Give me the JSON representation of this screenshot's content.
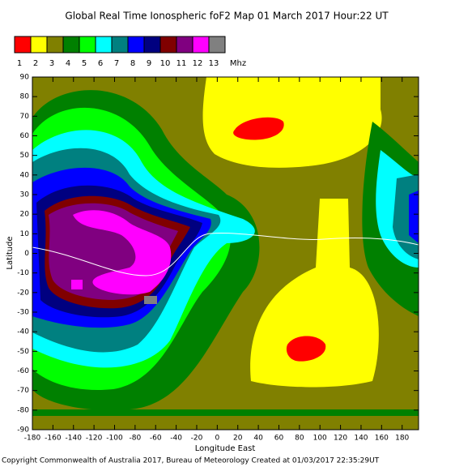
{
  "chart_data": {
    "type": "contour-map",
    "title": "Global Real Time Ionospheric foF2 Map  01 March 2017 Hour:22 UT",
    "legend": {
      "levels": [
        1,
        2,
        3,
        4,
        5,
        6,
        7,
        8,
        9,
        10,
        11,
        12,
        13
      ],
      "colors": [
        "#ff0000",
        "#ffff00",
        "#808000",
        "#008000",
        "#00ff00",
        "#00ffff",
        "#008080",
        "#0000ff",
        "#000080",
        "#800000",
        "#800080",
        "#ff00ff",
        "#808080"
      ],
      "unit": "Mhz"
    },
    "x_label": "Longitude East",
    "y_label": "Latitude",
    "xlim": [
      -180,
      196
    ],
    "ylim": [
      -90,
      90
    ],
    "xticks": [
      -180,
      -160,
      -140,
      -120,
      -100,
      -80,
      -60,
      -40,
      -20,
      0,
      20,
      40,
      60,
      80,
      100,
      120,
      140,
      160,
      180
    ],
    "yticks": [
      90,
      80,
      70,
      60,
      50,
      40,
      30,
      20,
      10,
      0,
      -10,
      -20,
      -30,
      -40,
      -50,
      -60,
      -70,
      -80,
      -90
    ],
    "footer": "Copyright Commonwealth of Australia 2017, Bureau of Meteorology    Created at 01/03/2017 22:35:29UT"
  }
}
